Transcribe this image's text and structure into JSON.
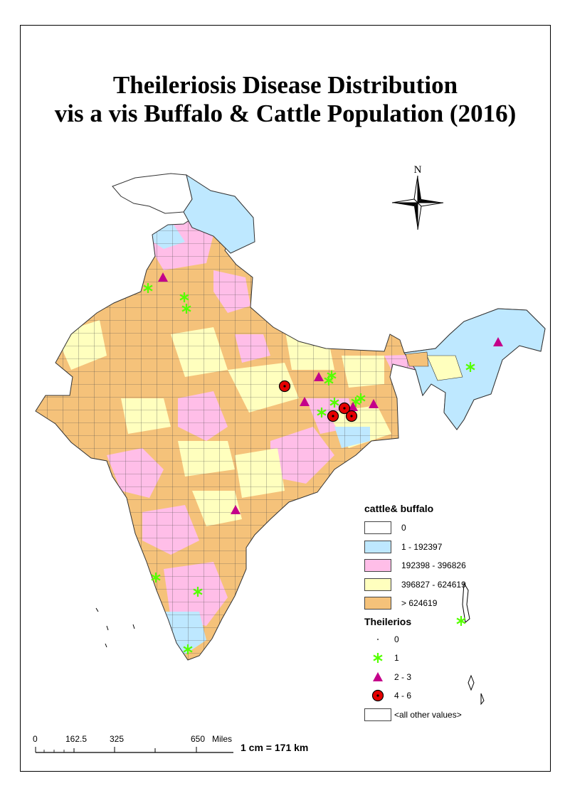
{
  "title": {
    "line1": "Theileriosis Disease Distribution",
    "line2": "vis a vis Buffalo & Cattle Population (2016)"
  },
  "north_arrow": {
    "label": "N",
    "icon": "compass-rose-icon"
  },
  "legend": {
    "population_title": "cattle& buffalo",
    "population_classes": [
      {
        "label": "0",
        "color": "#ffffff"
      },
      {
        "label": "1 - 192397",
        "color": "#bee8ff"
      },
      {
        "label": "192398 - 396826",
        "color": "#ffbee8"
      },
      {
        "label": "396827 - 624619",
        "color": "#ffffbe"
      },
      {
        "label": "> 624619",
        "color": "#f5c27a"
      }
    ],
    "disease_title": "Theilerios",
    "disease_classes": [
      {
        "label": "0",
        "symbol": "dot-icon",
        "color": "#000000"
      },
      {
        "label": "1",
        "symbol": "asterisk-icon",
        "color": "#55ff00"
      },
      {
        "label": "2 - 3",
        "symbol": "triangle-icon",
        "color": "#c4008a"
      },
      {
        "label": "4 - 6",
        "symbol": "target-circle-icon",
        "color": "#e60000"
      },
      {
        "label": "<all other values>",
        "symbol": "empty-box-icon",
        "color": "#ffffff"
      }
    ]
  },
  "scale_bar": {
    "ticks": [
      "0",
      "162.5",
      "325",
      "650"
    ],
    "unit": "Miles",
    "ratio": "1 cm = 171 km"
  },
  "map": {
    "region_colors": {
      "kashmir_north": "#ffffff",
      "ladakh": "#bee8ff",
      "northeast": "#bee8ff",
      "mainland": "#f5c27a",
      "pink": "#ffbee8",
      "yellow": "#ffffbe",
      "boundary": "#4a4a4a"
    }
  }
}
